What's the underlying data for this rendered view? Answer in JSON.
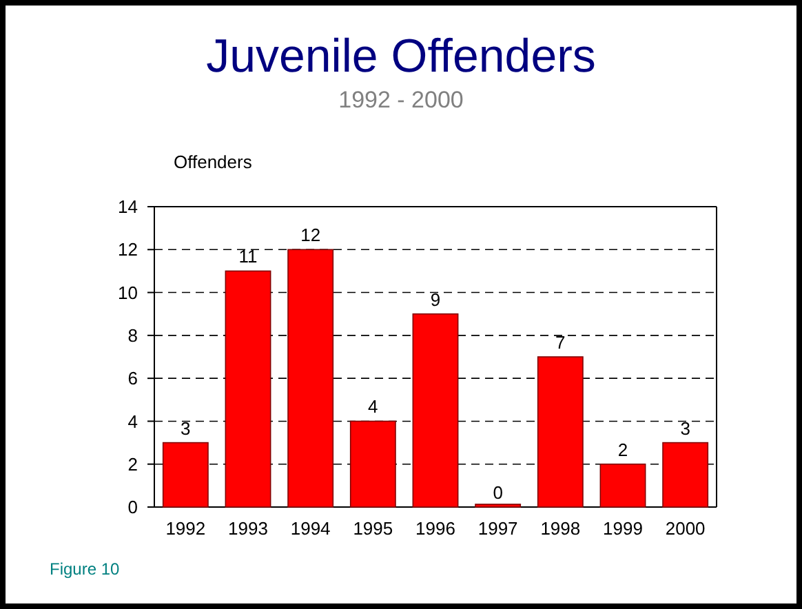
{
  "chart_data": {
    "type": "bar",
    "title": "Juvenile Offenders",
    "subtitle": "1992 - 2000",
    "ylabel": "Offenders",
    "categories": [
      "1992",
      "1993",
      "1994",
      "1995",
      "1996",
      "1997",
      "1998",
      "1999",
      "2000"
    ],
    "values": [
      3,
      11,
      12,
      4,
      9,
      0,
      7,
      2,
      3
    ],
    "color": "#ff0000",
    "ylim": [
      0,
      14
    ],
    "yticks": [
      0,
      2,
      4,
      6,
      8,
      10,
      12,
      14
    ],
    "grid": "y",
    "data_labels": true,
    "annotations": [
      "Figure 10"
    ]
  }
}
